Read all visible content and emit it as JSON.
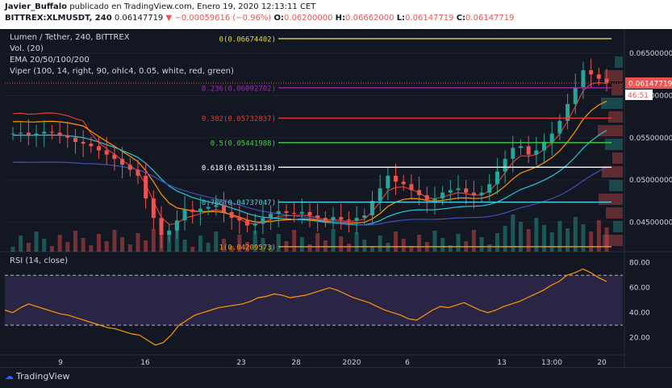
{
  "header": {
    "author": "Javier_Buffalo",
    "published_text": "publicado en TradingView.com, Enero 19, 2020 12:13:11 CET",
    "symbol": "BITTREX:XLMUSDT, 240",
    "last": "0.06147719",
    "change": "−0.00059616 (−0.96%)",
    "o_label": "O:",
    "o": "0.06200000",
    "h_label": "H:",
    "h": "0.06662000",
    "l_label": "L:",
    "l": "0.06147719",
    "c_label": "C:",
    "c": "0.06147719"
  },
  "legend": {
    "title": "Lumen / Tether, 240, BITTREX",
    "vol": "Vol. (20)",
    "ema": "EMA 20/50/100/200",
    "viper": "Viper (100, 14, right, 90, ohlc4, 0.05, white, red, green)"
  },
  "footer": {
    "brand": "TradingView"
  },
  "colors": {
    "background": "#131722",
    "up": "#26a69a",
    "down": "#ef5350",
    "rsi_line": "#ff9800",
    "rsi_band": "#7e57c2"
  },
  "chart_data": [
    {
      "type": "candlestick",
      "price_axis_ticks": [
        "0.06500000",
        "0.06000000",
        "0.05500000",
        "0.05000000",
        "0.04500000"
      ],
      "price_axis_values": [
        0.065,
        0.06,
        0.055,
        0.05,
        0.045
      ],
      "ylim": [
        0.0415,
        0.0675
      ],
      "current_price_label": "0.06147719",
      "countdown_label": "46:51",
      "time_axis_ticks": [
        "9",
        "16",
        "23",
        "28",
        "2020",
        "6",
        "13",
        "13:00",
        "20"
      ],
      "fib_levels": [
        {
          "ratio": "0",
          "price": 0.06674402,
          "label": "0(0.06674402)",
          "color": "#e6d83c"
        },
        {
          "ratio": "0.236",
          "price": 0.06092702,
          "label": "0.236(0.06092702)",
          "color": "#9c27b0"
        },
        {
          "ratio": "0.382",
          "price": 0.05732837,
          "label": "0.382(0.05732837)",
          "color": "#e53935"
        },
        {
          "ratio": "0.5",
          "price": 0.05441988,
          "label": "0.5(0.05441988)",
          "color": "#43d047"
        },
        {
          "ratio": "0.618",
          "price": 0.05151138,
          "label": "0.618(0.05151138)",
          "color": "#ffffff"
        },
        {
          "ratio": "0.786",
          "price": 0.04737047,
          "label": "0.786(0.04737047)",
          "color": "#4dd0e1"
        },
        {
          "ratio": "1",
          "price": 0.04209573,
          "label": "1(0.04209573)",
          "color": "#ff9800"
        }
      ],
      "close_series": [
        0.0555,
        0.0556,
        0.0553,
        0.0555,
        0.0557,
        0.0556,
        0.0553,
        0.055,
        0.0545,
        0.0543,
        0.054,
        0.0535,
        0.053,
        0.0525,
        0.0518,
        0.0512,
        0.0505,
        0.0478,
        0.0455,
        0.0435,
        0.044,
        0.0452,
        0.0465,
        0.0462,
        0.0466,
        0.0468,
        0.047,
        0.0462,
        0.0455,
        0.0452,
        0.0446,
        0.0448,
        0.0455,
        0.046,
        0.0463,
        0.0461,
        0.046,
        0.0462,
        0.0458,
        0.0455,
        0.0452,
        0.0456,
        0.0453,
        0.0452,
        0.0455,
        0.0458,
        0.0475,
        0.049,
        0.0505,
        0.0498,
        0.0495,
        0.0488,
        0.0482,
        0.0475,
        0.0478,
        0.0485,
        0.0488,
        0.049,
        0.0485,
        0.0482,
        0.0485,
        0.0495,
        0.051,
        0.0525,
        0.0538,
        0.054,
        0.053,
        0.0535,
        0.0545,
        0.0555,
        0.057,
        0.059,
        0.061,
        0.063,
        0.0625,
        0.062,
        0.0615
      ]
    },
    {
      "type": "line",
      "title": "RSI (14, close)",
      "ylim": [
        10,
        85
      ],
      "y_ticks": [
        "80.00",
        "60.00",
        "40.00",
        "20.00"
      ],
      "y_tick_values": [
        80,
        60,
        40,
        20
      ],
      "band": [
        30,
        70
      ],
      "values": [
        42,
        40,
        44,
        47,
        45,
        43,
        41,
        39,
        38,
        36,
        34,
        32,
        30,
        28,
        27,
        25,
        23,
        22,
        18,
        14,
        16,
        22,
        30,
        34,
        38,
        40,
        42,
        44,
        45,
        46,
        47,
        49,
        52,
        53,
        55,
        54,
        52,
        53,
        54,
        56,
        58,
        60,
        58,
        55,
        52,
        50,
        48,
        45,
        42,
        40,
        38,
        35,
        34,
        38,
        42,
        45,
        44,
        46,
        48,
        45,
        42,
        40,
        42,
        45,
        47,
        49,
        52,
        55,
        58,
        62,
        65,
        70,
        72,
        75,
        72,
        68,
        65
      ]
    }
  ]
}
